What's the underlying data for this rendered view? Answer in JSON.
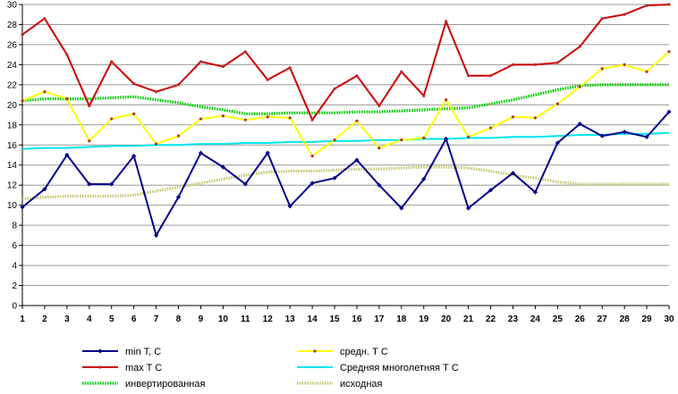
{
  "chart_data": {
    "type": "line",
    "title": "",
    "xlabel": "",
    "ylabel": "",
    "x": [
      1,
      2,
      3,
      4,
      5,
      6,
      7,
      8,
      9,
      10,
      11,
      12,
      13,
      14,
      15,
      16,
      17,
      18,
      19,
      20,
      21,
      22,
      23,
      24,
      25,
      26,
      27,
      28,
      29,
      30
    ],
    "ylim": [
      0,
      30
    ],
    "yticks": [
      0,
      2,
      4,
      6,
      8,
      10,
      12,
      14,
      16,
      18,
      20,
      22,
      24,
      26,
      28,
      30
    ],
    "grid": true,
    "legend_position": "bottom",
    "series": [
      {
        "name": "min T, C",
        "color": "#00008b",
        "marker": "diamond",
        "values": [
          9.8,
          11.6,
          15.0,
          12.1,
          12.1,
          14.9,
          7.0,
          10.8,
          15.2,
          13.8,
          12.1,
          15.2,
          9.9,
          12.2,
          12.7,
          14.5,
          12.0,
          9.7,
          12.6,
          16.6,
          9.7,
          11.5,
          13.2,
          11.3,
          16.2,
          18.1,
          16.9,
          17.3,
          16.8,
          19.3
        ]
      },
      {
        "name": "max T C",
        "color": "#cc0000",
        "marker": "dot",
        "values": [
          27.0,
          28.6,
          25.0,
          19.9,
          24.3,
          22.1,
          21.3,
          22.0,
          24.3,
          23.8,
          25.3,
          22.5,
          23.7,
          18.5,
          21.6,
          22.9,
          19.9,
          23.3,
          20.9,
          28.3,
          22.9,
          22.9,
          24.0,
          24.0,
          24.2,
          25.8,
          28.6,
          29.0,
          29.9,
          30.0
        ]
      },
      {
        "name": "инвертированная",
        "color": "#00cc00",
        "marker": "dotted-thick",
        "values": [
          20.4,
          20.6,
          20.6,
          20.6,
          20.7,
          20.8,
          20.5,
          20.2,
          19.8,
          19.5,
          19.1,
          19.1,
          19.2,
          19.2,
          19.2,
          19.3,
          19.3,
          19.4,
          19.5,
          19.6,
          19.7,
          20.1,
          20.5,
          21.0,
          21.5,
          21.9,
          22.0,
          22.0,
          22.0,
          22.0
        ]
      },
      {
        "name": "средн. Т С",
        "color": "#ffff00",
        "marker": "dot",
        "values": [
          20.4,
          21.3,
          20.6,
          16.4,
          18.6,
          19.1,
          16.1,
          16.9,
          18.6,
          18.9,
          18.5,
          18.8,
          18.7,
          14.9,
          16.5,
          18.4,
          15.7,
          16.5,
          16.7,
          20.5,
          16.8,
          17.7,
          18.8,
          18.7,
          20.1,
          21.8,
          23.6,
          24.0,
          23.3,
          25.3
        ]
      },
      {
        "name": "Средняя многолетняя Т С",
        "color": "#00e5ee",
        "marker": "none",
        "values": [
          15.6,
          15.7,
          15.7,
          15.8,
          15.9,
          15.9,
          16.0,
          16.0,
          16.1,
          16.1,
          16.2,
          16.2,
          16.3,
          16.3,
          16.4,
          16.4,
          16.5,
          16.5,
          16.6,
          16.6,
          16.7,
          16.7,
          16.8,
          16.8,
          16.9,
          17.0,
          17.0,
          17.1,
          17.1,
          17.2
        ]
      },
      {
        "name": "исходная",
        "color": "#c8c878",
        "marker": "dotted-thick",
        "values": [
          10.6,
          10.8,
          10.9,
          10.9,
          10.9,
          11.0,
          11.4,
          11.8,
          12.2,
          12.6,
          13.0,
          13.3,
          13.4,
          13.4,
          13.5,
          13.6,
          13.6,
          13.7,
          13.8,
          13.8,
          13.7,
          13.4,
          13.0,
          12.7,
          12.3,
          12.1,
          12.1,
          12.1,
          12.1,
          12.1
        ]
      }
    ]
  }
}
